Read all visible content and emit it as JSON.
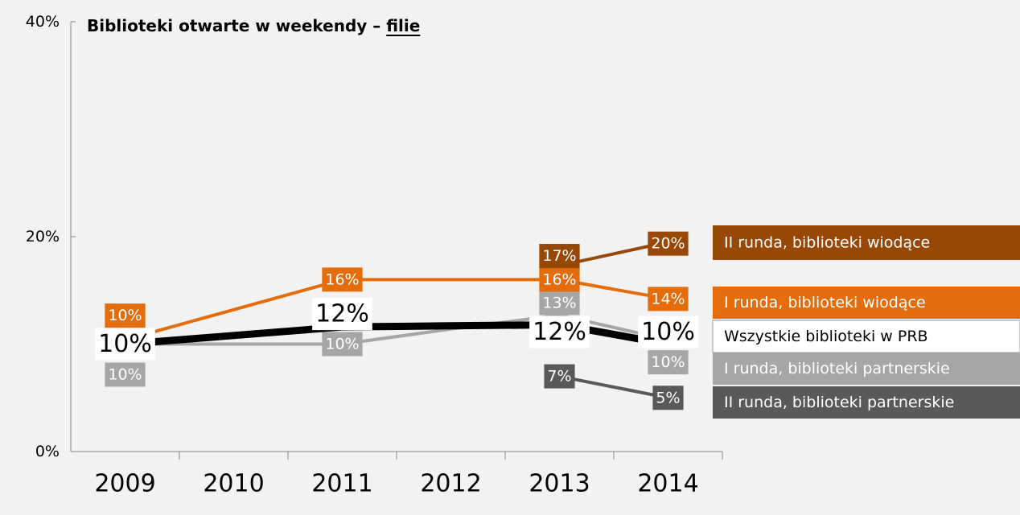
{
  "chart_data": {
    "type": "line",
    "title": "Biblioteki otwarte w weekendy –",
    "title_emphasis": "filie",
    "categories": [
      "2009",
      "2010",
      "2011",
      "2012",
      "2013",
      "2014"
    ],
    "ylim": [
      0,
      40
    ],
    "yticks": [
      {
        "value": 0,
        "label": "0%"
      },
      {
        "value": 20,
        "label": "20%"
      },
      {
        "value": 40,
        "label": "40%"
      }
    ],
    "grid": false,
    "legend": "right",
    "series": [
      {
        "name": "II runda, biblioteki wiodące",
        "color": "#974706",
        "values": [
          null,
          null,
          null,
          null,
          17.3,
          19.5
        ],
        "value_labels": [
          null,
          null,
          null,
          null,
          "17%",
          "20%"
        ]
      },
      {
        "name": "I runda, biblioteki wiodące",
        "color": "#e46c0a",
        "values": [
          10.4,
          13.2,
          16,
          16,
          16,
          14.2
        ],
        "value_labels": [
          "10%",
          null,
          "16%",
          null,
          "16%",
          "14%"
        ]
      },
      {
        "name": "Wszystkie biblioteki w PRB",
        "color": "#000000",
        "values": [
          10,
          10.8,
          11.6,
          11.7,
          11.8,
          10
        ],
        "value_labels": [
          "10%",
          null,
          "12%",
          null,
          "12%",
          "10%"
        ]
      },
      {
        "name": "I runda, biblioteki partnerskie",
        "color": "#a6a6a6",
        "values": [
          10,
          10,
          10,
          11.4,
          12.7,
          10.4
        ],
        "value_labels": [
          "10%",
          null,
          "10%",
          null,
          "13%",
          "10%"
        ]
      },
      {
        "name": "II runda, biblioteki partnerskie",
        "color": "#595959",
        "values": [
          null,
          null,
          null,
          null,
          7,
          5
        ],
        "value_labels": [
          null,
          null,
          null,
          null,
          "7%",
          "5%"
        ]
      }
    ]
  }
}
